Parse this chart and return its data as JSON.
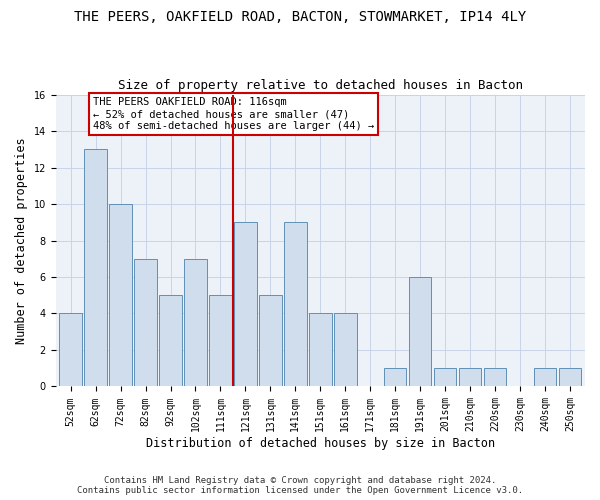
{
  "title": "THE PEERS, OAKFIELD ROAD, BACTON, STOWMARKET, IP14 4LY",
  "subtitle": "Size of property relative to detached houses in Bacton",
  "xlabel": "Distribution of detached houses by size in Bacton",
  "ylabel": "Number of detached properties",
  "bar_labels": [
    "52sqm",
    "62sqm",
    "72sqm",
    "82sqm",
    "92sqm",
    "102sqm",
    "111sqm",
    "121sqm",
    "131sqm",
    "141sqm",
    "151sqm",
    "161sqm",
    "171sqm",
    "181sqm",
    "191sqm",
    "201sqm",
    "210sqm",
    "220sqm",
    "230sqm",
    "240sqm",
    "250sqm"
  ],
  "bar_values": [
    4,
    13,
    10,
    7,
    5,
    7,
    5,
    9,
    5,
    9,
    4,
    4,
    0,
    1,
    6,
    1,
    1,
    1,
    0,
    1,
    1
  ],
  "bar_color": "#d0dded",
  "bar_edge_color": "#6090b8",
  "reference_line_color": "#cc0000",
  "annotation_text": "THE PEERS OAKFIELD ROAD: 116sqm\n← 52% of detached houses are smaller (47)\n48% of semi-detached houses are larger (44) →",
  "annotation_box_color": "#ffffff",
  "annotation_box_edge": "#cc0000",
  "ylim": [
    0,
    16
  ],
  "yticks": [
    0,
    2,
    4,
    6,
    8,
    10,
    12,
    14,
    16
  ],
  "footer_text": "Contains HM Land Registry data © Crown copyright and database right 2024.\nContains public sector information licensed under the Open Government Licence v3.0.",
  "title_fontsize": 10,
  "subtitle_fontsize": 9,
  "xlabel_fontsize": 8.5,
  "ylabel_fontsize": 8.5,
  "tick_fontsize": 7,
  "footer_fontsize": 6.5,
  "bar_width": 0.9,
  "grid_color": "#c8d4e8",
  "bg_color": "#edf2f9",
  "fig_bg_color": "#ffffff"
}
